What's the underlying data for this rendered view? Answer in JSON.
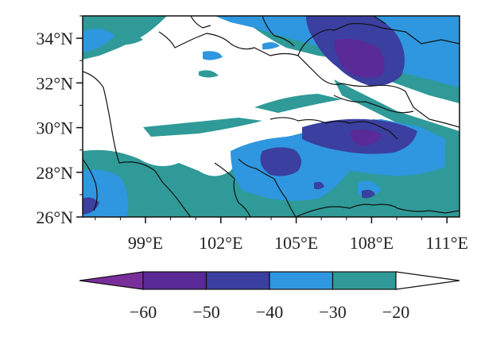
{
  "map": {
    "lat_range": [
      26,
      35
    ],
    "lon_range": [
      96.5,
      111.5
    ],
    "lat_ticks": [
      {
        "value": 26,
        "label": "26°N"
      },
      {
        "value": 28,
        "label": "28°N"
      },
      {
        "value": 30,
        "label": "30°N"
      },
      {
        "value": 32,
        "label": "32°N"
      },
      {
        "value": 34,
        "label": "34°N"
      }
    ],
    "lon_ticks": [
      {
        "value": 99,
        "label": "99°E"
      },
      {
        "value": 102,
        "label": "102°E"
      },
      {
        "value": 105,
        "label": "105°E"
      },
      {
        "value": 108,
        "label": "108°E"
      },
      {
        "value": 111,
        "label": "111°E"
      }
    ]
  },
  "colorbar": {
    "levels": [
      {
        "label": "−60"
      },
      {
        "label": "−50"
      },
      {
        "label": "−40"
      },
      {
        "label": "−30"
      },
      {
        "label": "−20"
      }
    ],
    "colors": [
      "#7a2e9c",
      "#5a2a96",
      "#3b3f9f",
      "#2f97df",
      "#2f9a98",
      "#ffffff"
    ]
  }
}
